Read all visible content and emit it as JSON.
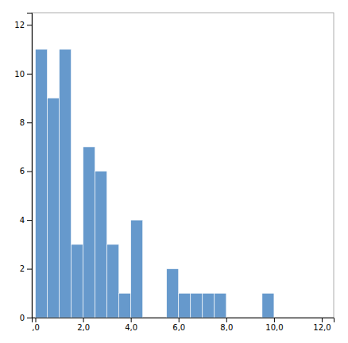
{
  "chart_data": {
    "type": "histogram",
    "bins": [
      0.0,
      0.5,
      1.0,
      1.5,
      2.0,
      2.5,
      3.0,
      3.5,
      4.0,
      4.5,
      5.0,
      5.5,
      6.0,
      6.5,
      7.0,
      7.5,
      8.0,
      8.5,
      9.0,
      9.5,
      10.0
    ],
    "values": [
      11,
      9,
      11,
      3,
      7,
      6,
      3,
      1,
      4,
      0,
      0,
      2,
      1,
      1,
      1,
      1,
      0,
      0,
      0,
      1
    ],
    "color": "#6699cc",
    "xlim": [
      -0.15,
      12.5
    ],
    "ylim": [
      0,
      12.5
    ],
    "xticks": [
      {
        "value": 0.0,
        "label": ",0"
      },
      {
        "value": 2.0,
        "label": "2,0"
      },
      {
        "value": 4.0,
        "label": "4,0"
      },
      {
        "value": 6.0,
        "label": "6,0"
      },
      {
        "value": 8.0,
        "label": "8,0"
      },
      {
        "value": 10.0,
        "label": "10,0"
      },
      {
        "value": 12.0,
        "label": "12,0"
      }
    ],
    "yticks": [
      0,
      2,
      4,
      6,
      8,
      10,
      12
    ],
    "grid": false
  }
}
